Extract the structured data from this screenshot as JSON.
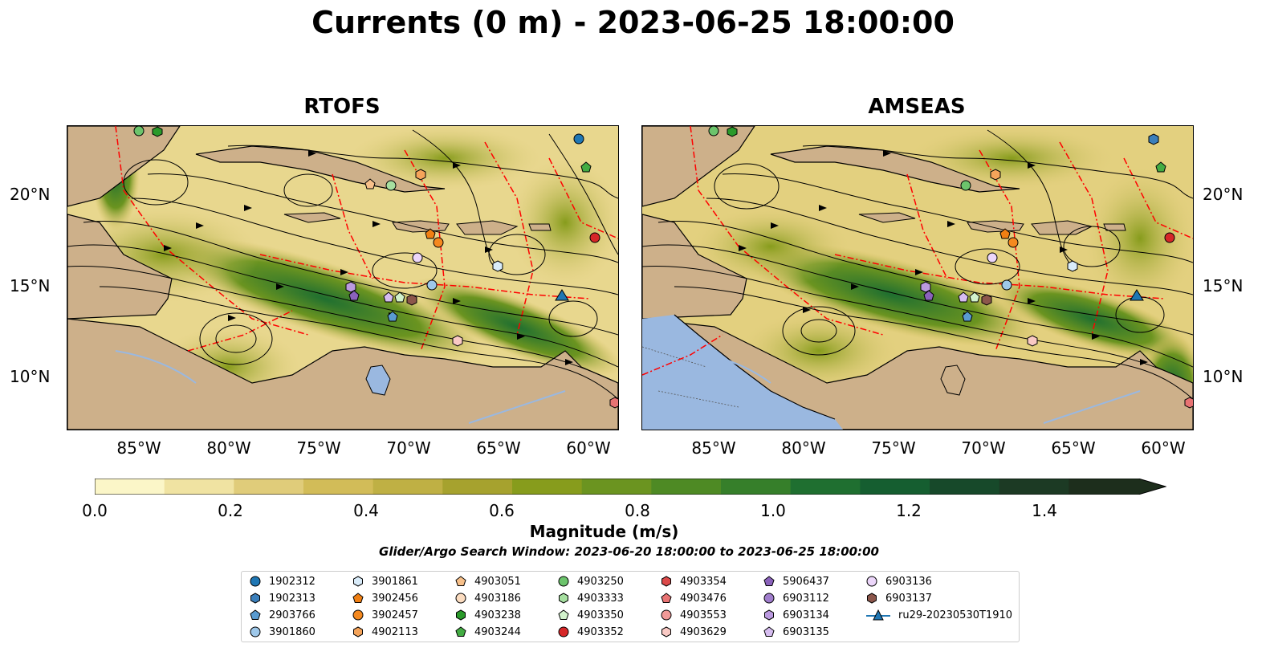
{
  "title": "Currents (0 m) - 2023-06-25 18:00:00",
  "panels": [
    {
      "title": "RTOFS"
    },
    {
      "title": "AMSEAS"
    }
  ],
  "lat_labels": [
    "20°N",
    "15°N",
    "10°N"
  ],
  "lon_labels": [
    "85°W",
    "80°W",
    "75°W",
    "70°W",
    "65°W",
    "60°W"
  ],
  "colorbar": {
    "label": "Magnitude (m/s)",
    "ticks": [
      "0.0",
      "0.2",
      "0.4",
      "0.6",
      "0.8",
      "1.0",
      "1.2",
      "1.4"
    ],
    "min": 0.0,
    "max": 1.5,
    "extend": "max",
    "colors": [
      "#fbf6c8",
      "#f0e3a2",
      "#e0cc7a",
      "#d2bc58",
      "#bfb044",
      "#a6a22e",
      "#879c1c",
      "#6b9420",
      "#4e8a24",
      "#367f2a",
      "#1f6f30",
      "#155e30",
      "#17492a",
      "#1c3a24",
      "#1d2e1c"
    ]
  },
  "search_window": "Glider/Argo Search Window: 2023-06-20 18:00:00 to 2023-06-25 18:00:00",
  "legend": {
    "columns": [
      [
        {
          "label": "1902312",
          "shape": "circle",
          "color": "#1f77b4"
        },
        {
          "label": "1902313",
          "shape": "hexagon",
          "color": "#3b7fbb"
        },
        {
          "label": "2903766",
          "shape": "pentagon",
          "color": "#5a9bd0"
        },
        {
          "label": "3901860",
          "shape": "circle",
          "color": "#9ec8ea"
        }
      ],
      [
        {
          "label": "3901861",
          "shape": "hexagon",
          "color": "#d9ecfa"
        },
        {
          "label": "3902456",
          "shape": "pentagon",
          "color": "#f07f13"
        },
        {
          "label": "3902457",
          "shape": "circle",
          "color": "#f5891f"
        },
        {
          "label": "4902113",
          "shape": "hexagon",
          "color": "#f5a45a"
        }
      ],
      [
        {
          "label": "4903051",
          "shape": "pentagon",
          "color": "#f7c08a"
        },
        {
          "label": "4903186",
          "shape": "circle",
          "color": "#fbdcc0"
        },
        {
          "label": "4903238",
          "shape": "hexagon",
          "color": "#2a9a2a"
        },
        {
          "label": "4903244",
          "shape": "pentagon",
          "color": "#43ac43"
        }
      ],
      [
        {
          "label": "4903250",
          "shape": "circle",
          "color": "#6cc46c"
        },
        {
          "label": "4903333",
          "shape": "hexagon",
          "color": "#a6dfa0"
        },
        {
          "label": "4903350",
          "shape": "pentagon",
          "color": "#d2f2cc"
        },
        {
          "label": "4903352",
          "shape": "circle",
          "color": "#d62728"
        }
      ],
      [
        {
          "label": "4903354",
          "shape": "hexagon",
          "color": "#dc4a4a"
        },
        {
          "label": "4903476",
          "shape": "pentagon",
          "color": "#e87373"
        },
        {
          "label": "4903553",
          "shape": "circle",
          "color": "#f09a98"
        },
        {
          "label": "4903629",
          "shape": "hexagon",
          "color": "#f9c9c4"
        }
      ],
      [
        {
          "label": "5906437",
          "shape": "pentagon",
          "color": "#8a62bb"
        },
        {
          "label": "6903112",
          "shape": "circle",
          "color": "#a07dcc"
        },
        {
          "label": "6903134",
          "shape": "hexagon",
          "color": "#bb9ae0"
        },
        {
          "label": "6903135",
          "shape": "pentagon",
          "color": "#d6bdf0"
        }
      ],
      [
        {
          "label": "6903136",
          "shape": "circle",
          "color": "#ecd6fa"
        },
        {
          "label": "6903137",
          "shape": "hexagon",
          "color": "#8c564b"
        },
        {
          "label": "ru29-20230530T1910",
          "shape": "triangle-line",
          "color": "#1f77b4"
        }
      ]
    ]
  },
  "colors": {
    "land": "#cdb08a",
    "lake": "#9ab8e0",
    "eez_lines": "#ff0000",
    "streamlines": "#000000"
  }
}
